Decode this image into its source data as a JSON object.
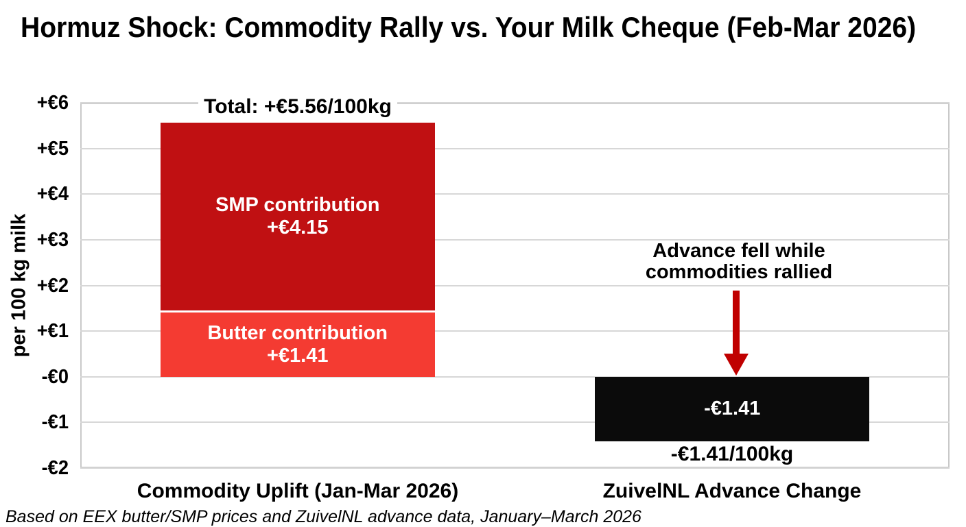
{
  "title": "Hormuz Shock: Commodity Rally vs. Your Milk Cheque (Feb-Mar 2026)",
  "footnote": "Based on EEX butter/SMP prices and ZuivelNL advance data, January–March 2026",
  "chart_data": {
    "type": "bar",
    "stacked": true,
    "title": "Hormuz Shock: Commodity Rally vs. Your Milk Cheque (Feb-Mar 2026)",
    "xlabel": "",
    "ylabel": "per 100 kg milk",
    "ylim": [
      -2,
      6
    ],
    "grid": true,
    "legend": "none",
    "yticks": [
      {
        "label": "+€6",
        "value": 6
      },
      {
        "label": "+€5",
        "value": 5
      },
      {
        "label": "+€4",
        "value": 4
      },
      {
        "label": "+€3",
        "value": 3
      },
      {
        "label": "+€2",
        "value": 2
      },
      {
        "label": "+€1",
        "value": 1
      },
      {
        "label": "-€0",
        "value": 0
      },
      {
        "label": "-€1",
        "value": -1
      },
      {
        "label": "-€2",
        "value": -2
      }
    ],
    "categories": [
      "Commodity Uplift (Jan-Mar 2026)",
      "ZuivelNL Advance Change"
    ],
    "bars": [
      {
        "category": "Commodity Uplift (Jan-Mar 2026)",
        "total_value": 5.56,
        "total_label": "Total: +€5.56/100kg",
        "segments": [
          {
            "name": "Butter contribution",
            "value": 1.41,
            "stack_from": 0,
            "color": "#f43b32",
            "label_color": "#ffffff",
            "label_lines": [
              "Butter contribution",
              "+€1.41"
            ]
          },
          {
            "name": "SMP contribution",
            "value": 4.15,
            "stack_from": 1.41,
            "color": "#c01012",
            "label_color": "#ffffff",
            "label_lines": [
              "SMP contribution",
              "+€4.15"
            ]
          }
        ]
      },
      {
        "category": "ZuivelNL Advance Change",
        "total_value": -1.41,
        "below_label": "-€1.41/100kg",
        "segments": [
          {
            "name": "Advance change",
            "value": -1.41,
            "stack_from": 0,
            "color": "#0b0b0b",
            "label_color": "#ffffff",
            "label_lines": [
              "-€1.41"
            ]
          }
        ]
      }
    ],
    "annotation": {
      "lines": [
        "Advance fell while",
        "commodities rallied"
      ],
      "arrow_color": "#c00000"
    },
    "colors": {
      "grid": "#d7d7d7",
      "plot_border": "#c9c9c9",
      "smp_red": "#c01012",
      "butter_red": "#f43b32",
      "advance_black": "#0b0b0b",
      "arrow_red": "#c00000"
    }
  }
}
